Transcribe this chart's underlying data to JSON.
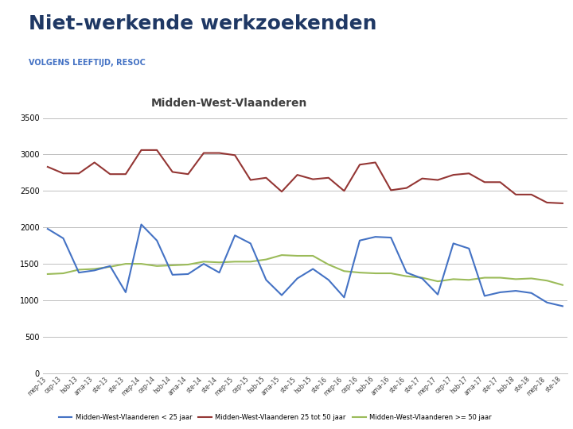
{
  "title": "Niet-werkende werkzoekenden",
  "subtitle": "VOLGENS LEEFTIJD, RESOC",
  "region": "Midden-West-Vlaanderen",
  "legend": [
    "Midden-West-Vlaanderen < 25 jaar",
    "Midden-West-Vlaanderen 25 tot 50 jaar",
    "Midden-West-Vlaanderen >= 50 jaar"
  ],
  "line_colors": [
    "#4472C4",
    "#943634",
    "#9BBB59"
  ],
  "ylim": [
    0,
    3500
  ],
  "yticks": [
    0,
    500,
    1000,
    1500,
    2000,
    2500,
    3000,
    3500
  ],
  "x_labels": [
    "mep-13",
    "cep-13",
    "hob-13",
    "ama-13",
    "ste-13",
    "ste-13",
    "mep-14",
    "cep-14",
    "hob-14",
    "ama-14",
    "ste-14",
    "ste-14",
    "mep-15",
    "cep-15",
    "hob-15",
    "ama-15",
    "ste-15",
    "hob-15",
    "ste-16",
    "mep-16",
    "cep-16",
    "hob-16",
    "ama-16",
    "ste-16",
    "ste-17",
    "mep-17",
    "cep-17",
    "hob-17",
    "ama-17",
    "ste-17",
    "hob-18",
    "ste-18",
    "mep-18",
    "ste-18"
  ],
  "data_under25": [
    1980,
    1850,
    1380,
    1410,
    1470,
    1110,
    2040,
    1820,
    1350,
    1360,
    1500,
    1380,
    1890,
    1780,
    1280,
    1070,
    1300,
    1430,
    1280,
    1040,
    1820,
    1870,
    1860,
    1380,
    1300,
    1080,
    1780,
    1710,
    1060,
    1110,
    1130,
    1100,
    970,
    920
  ],
  "data_25to50": [
    2830,
    2740,
    2740,
    2890,
    2730,
    2730,
    3060,
    3060,
    2760,
    2730,
    3020,
    3020,
    2990,
    2650,
    2680,
    2490,
    2720,
    2660,
    2680,
    2500,
    2860,
    2890,
    2510,
    2540,
    2670,
    2650,
    2720,
    2740,
    2620,
    2620,
    2450,
    2450,
    2340,
    2330
  ],
  "data_over50": [
    1360,
    1370,
    1420,
    1430,
    1460,
    1500,
    1500,
    1470,
    1480,
    1490,
    1530,
    1520,
    1530,
    1530,
    1560,
    1620,
    1610,
    1610,
    1490,
    1400,
    1380,
    1370,
    1370,
    1330,
    1310,
    1260,
    1290,
    1280,
    1310,
    1310,
    1290,
    1300,
    1270,
    1210
  ],
  "background_color": "#FFFFFF",
  "grid_color": "#BFBFBF",
  "title_color": "#1F3864",
  "subtitle_color": "#4472C4",
  "region_color": "#404040",
  "vdab_blue": "#1E8FCC"
}
